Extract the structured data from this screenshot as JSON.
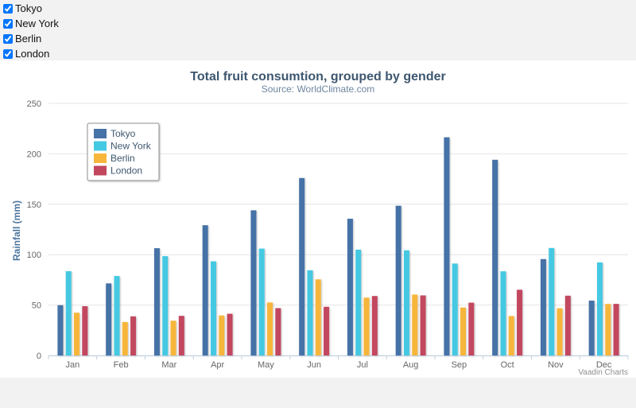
{
  "controls": {
    "checkboxes": [
      {
        "label": "Tokyo",
        "checked": true
      },
      {
        "label": "New York",
        "checked": true
      },
      {
        "label": "Berlin",
        "checked": true
      },
      {
        "label": "London",
        "checked": true
      }
    ]
  },
  "chart_data": {
    "type": "bar",
    "title": "Total fruit consumtion, grouped by gender",
    "subtitle": "Source: WorldClimate.com",
    "xlabel": "",
    "ylabel": "Rainfall (mm)",
    "ylim": [
      0,
      250
    ],
    "yticks": [
      0,
      50,
      100,
      150,
      200,
      250
    ],
    "grid": true,
    "legend_position": "top-left",
    "credits": "Vaadin Charts",
    "categories": [
      "Jan",
      "Feb",
      "Mar",
      "Apr",
      "May",
      "Jun",
      "Jul",
      "Aug",
      "Sep",
      "Oct",
      "Nov",
      "Dec"
    ],
    "series": [
      {
        "name": "Tokyo",
        "color": "#4572a7",
        "values": [
          49.9,
          71.5,
          106.4,
          129.2,
          144.0,
          176.0,
          135.6,
          148.5,
          216.4,
          194.1,
          95.6,
          54.4
        ]
      },
      {
        "name": "New York",
        "color": "#44c9e2",
        "values": [
          83.6,
          78.8,
          98.5,
          93.4,
          106.0,
          84.5,
          105.0,
          104.3,
          91.2,
          83.5,
          106.6,
          92.3
        ]
      },
      {
        "name": "Berlin",
        "color": "#f7b63b",
        "values": [
          42.4,
          33.2,
          34.5,
          39.7,
          52.6,
          75.5,
          57.4,
          60.4,
          47.6,
          39.1,
          46.8,
          51.1
        ]
      },
      {
        "name": "London",
        "color": "#c2465e",
        "values": [
          48.9,
          38.8,
          39.3,
          41.4,
          47.0,
          48.3,
          59.0,
          59.6,
          52.4,
          65.2,
          59.3,
          51.2
        ]
      }
    ]
  }
}
